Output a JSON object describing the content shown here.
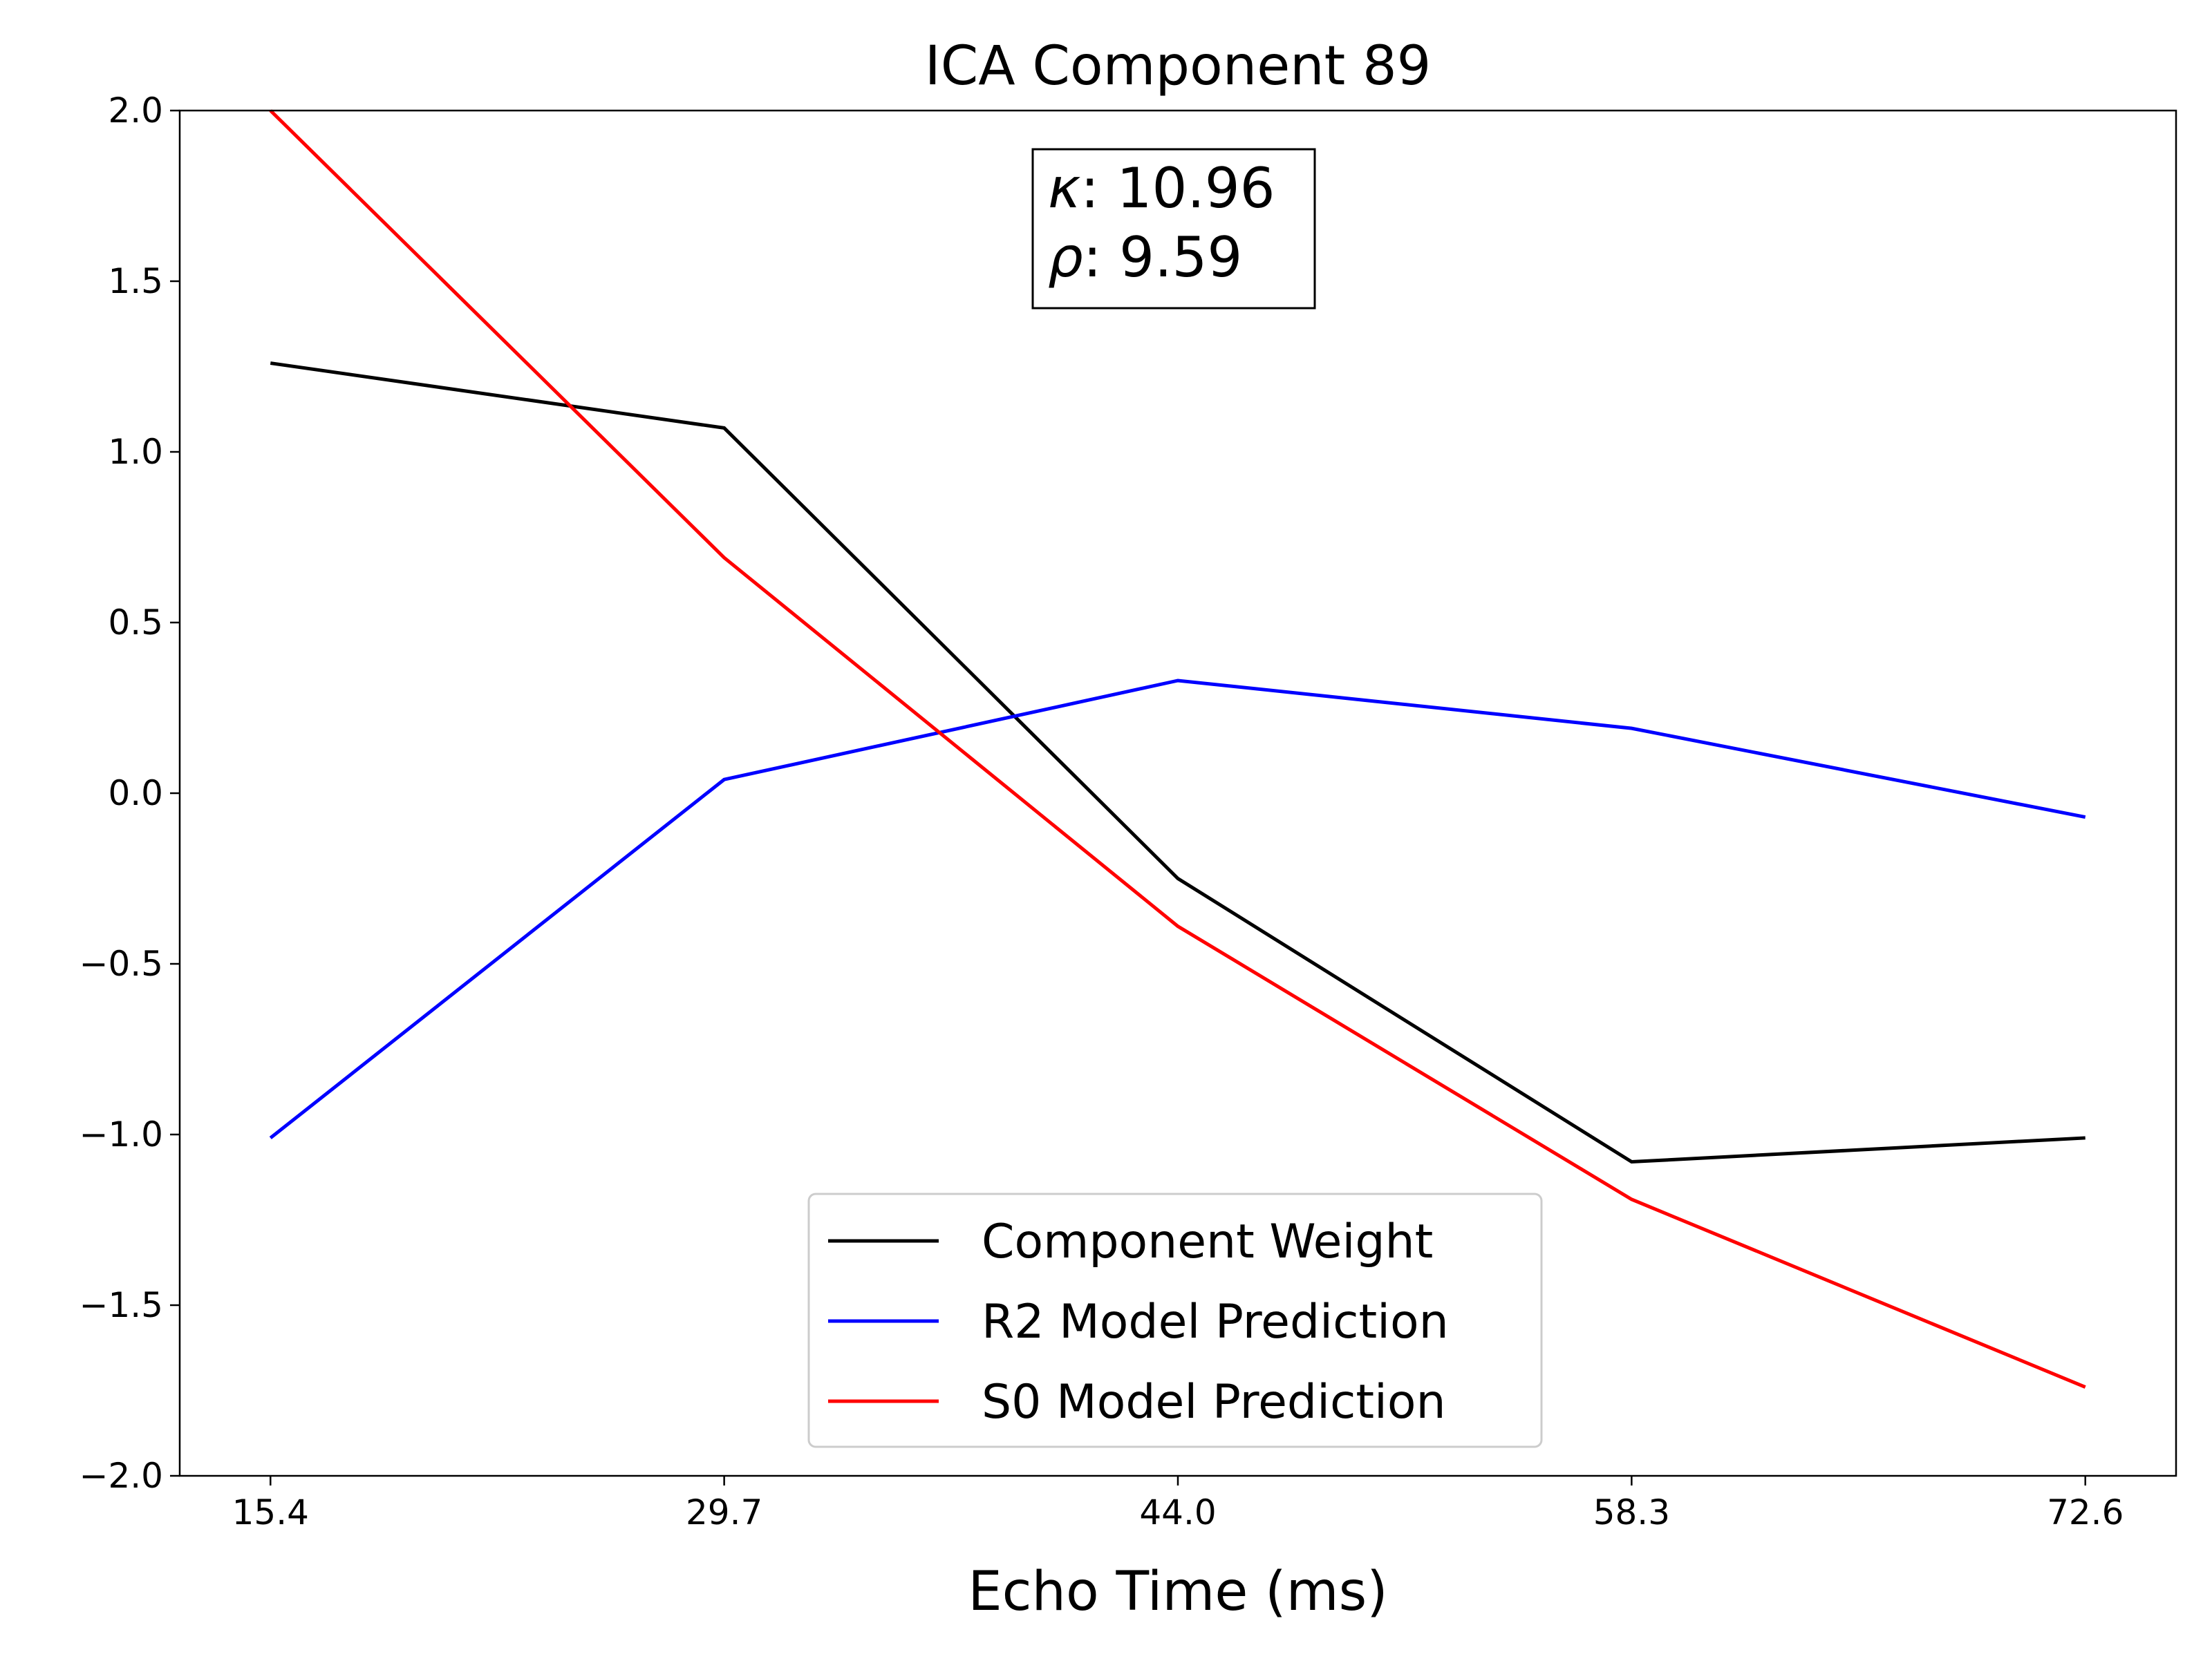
{
  "chart_data": {
    "type": "line",
    "title": "ICA Component 89",
    "xlabel": "Echo Time (ms)",
    "ylabel": "",
    "x": [
      15.4,
      29.7,
      44.0,
      58.3,
      72.6
    ],
    "xtick_labels": [
      "15.4",
      "29.7",
      "44.0",
      "58.3",
      "72.6"
    ],
    "xlim": [
      12.54,
      75.46
    ],
    "ylim": [
      -2.0,
      2.0
    ],
    "yticks": [
      -2.0,
      -1.5,
      -1.0,
      -0.5,
      0.0,
      0.5,
      1.0,
      1.5,
      2.0
    ],
    "ytick_labels": [
      "−2.0",
      "−1.5",
      "−1.0",
      "−0.5",
      "0.0",
      "0.5",
      "1.0",
      "1.5",
      "2.0"
    ],
    "grid": false,
    "legend_position": "bottom-center",
    "series": [
      {
        "name": "Component Weight",
        "color": "#000000",
        "values": [
          1.26,
          1.07,
          -0.25,
          -1.08,
          -1.01
        ]
      },
      {
        "name": "R2 Model Prediction",
        "color": "#0000ff",
        "values": [
          -1.01,
          0.04,
          0.33,
          0.19,
          -0.07
        ]
      },
      {
        "name": "S0 Model Prediction",
        "color": "#ff0000",
        "values": [
          2.0,
          0.69,
          -0.39,
          -1.19,
          -1.74
        ]
      }
    ],
    "annotation": {
      "kappa_symbol": "κ",
      "kappa_value": ": 10.96",
      "rho_symbol": "ρ",
      "rho_value": ": 9.59"
    }
  }
}
